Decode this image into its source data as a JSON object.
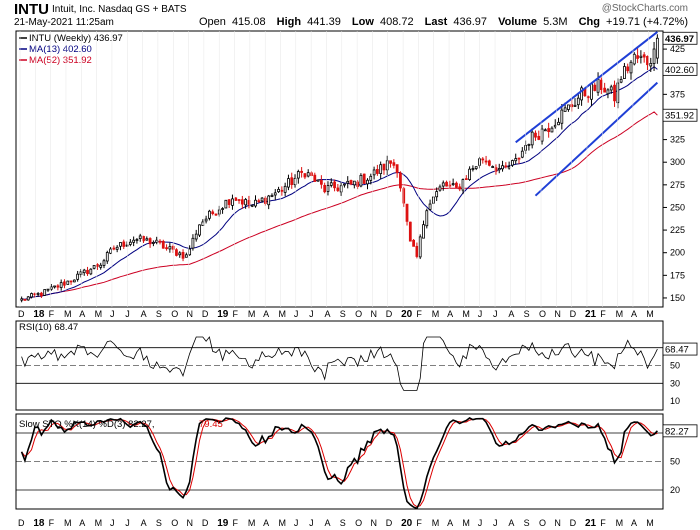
{
  "header": {
    "symbol": "INTU",
    "company": "Intuit, Inc. Nasdaq GS + BATS",
    "date": "21-May-2021 11:25am",
    "watermark": "@StockCharts.com",
    "open_label": "Open",
    "open": "415.08",
    "high_label": "High",
    "high": "441.39",
    "low_label": "Low",
    "low": "408.72",
    "last_label": "Last",
    "last": "436.97",
    "volume_label": "Volume",
    "volume": "5.3M",
    "chg_label": "Chg",
    "chg": "+19.71 (+4.72%)"
  },
  "colors": {
    "up": "#000000",
    "down": "#dd1111",
    "ma13": "#000080",
    "ma52": "#cc0022",
    "channel": "#1f3fd6",
    "rsi": "#000000",
    "rsi_fill": "#3f7f3f",
    "stoK": "#000000",
    "stoD": "#dd0000"
  },
  "chart_data": [
    {
      "type": "candlestick",
      "legend": [
        "INTU (Weekly) 436.97",
        "MA(13) 402.60",
        "MA(52) 351.92"
      ],
      "ylim": [
        140,
        445
      ],
      "yticks": [
        150,
        175,
        200,
        225,
        250,
        275,
        300,
        325,
        350,
        375,
        400,
        425
      ],
      "price_tags": [
        "436.97",
        "402.60",
        "351.92"
      ],
      "price_tag_values": [
        436.97,
        402.6,
        351.92
      ],
      "month_labels": [
        "D",
        "18",
        "F",
        "M",
        "A",
        "M",
        "J",
        "J",
        "A",
        "S",
        "O",
        "N",
        "D",
        "19",
        "F",
        "M",
        "A",
        "M",
        "J",
        "J",
        "A",
        "S",
        "O",
        "N",
        "D",
        "20",
        "F",
        "M",
        "A",
        "M",
        "J",
        "J",
        "A",
        "S",
        "O",
        "N",
        "D",
        "21",
        "F",
        "M",
        "A",
        "M"
      ],
      "close_anchors": [
        [
          0,
          148
        ],
        [
          6,
          155
        ],
        [
          14,
          168
        ],
        [
          24,
          188
        ],
        [
          28,
          205
        ],
        [
          34,
          215
        ],
        [
          40,
          212
        ],
        [
          44,
          205
        ],
        [
          50,
          196
        ],
        [
          54,
          232
        ],
        [
          64,
          262
        ],
        [
          70,
          252
        ],
        [
          78,
          268
        ],
        [
          86,
          290
        ],
        [
          92,
          270
        ],
        [
          100,
          275
        ],
        [
          106,
          285
        ],
        [
          112,
          300
        ],
        [
          114,
          295
        ],
        [
          118,
          210
        ],
        [
          120,
          195
        ],
        [
          123,
          252
        ],
        [
          128,
          275
        ],
        [
          132,
          270
        ],
        [
          136,
          290
        ],
        [
          140,
          305
        ],
        [
          146,
          290
        ],
        [
          150,
          300
        ],
        [
          154,
          325
        ],
        [
          160,
          340
        ],
        [
          166,
          360
        ],
        [
          170,
          375
        ],
        [
          176,
          385
        ],
        [
          180,
          372
        ],
        [
          182,
          395
        ],
        [
          186,
          415
        ],
        [
          190,
          412
        ],
        [
          192,
          420
        ],
        [
          193,
          436.97
        ]
      ],
      "ma13_last": 402.6,
      "ma52_last": 351.92,
      "channel_upper": [
        [
          468,
          370
        ],
        [
          645,
          444
        ]
      ],
      "channel_lower": [
        [
          492,
          236
        ],
        [
          658,
          386
        ]
      ]
    },
    {
      "type": "line",
      "name": "RSI(10) 68.47",
      "ylim": [
        0,
        100
      ],
      "yticks": [
        70,
        50,
        30,
        10
      ],
      "last": 68.47,
      "last_label": "68.47"
    },
    {
      "type": "line",
      "legend": "Slow STO %K(14) %D(3) 82.27, 79.45",
      "legend_k": "Slow STO %K(14) %D(3) 82.27,",
      "legend_d": "79.45",
      "ylim": [
        0,
        100
      ],
      "yticks": [
        80,
        50,
        20
      ],
      "last_k": 82.27,
      "last_d": 79.45,
      "last_label": "82.27"
    }
  ]
}
